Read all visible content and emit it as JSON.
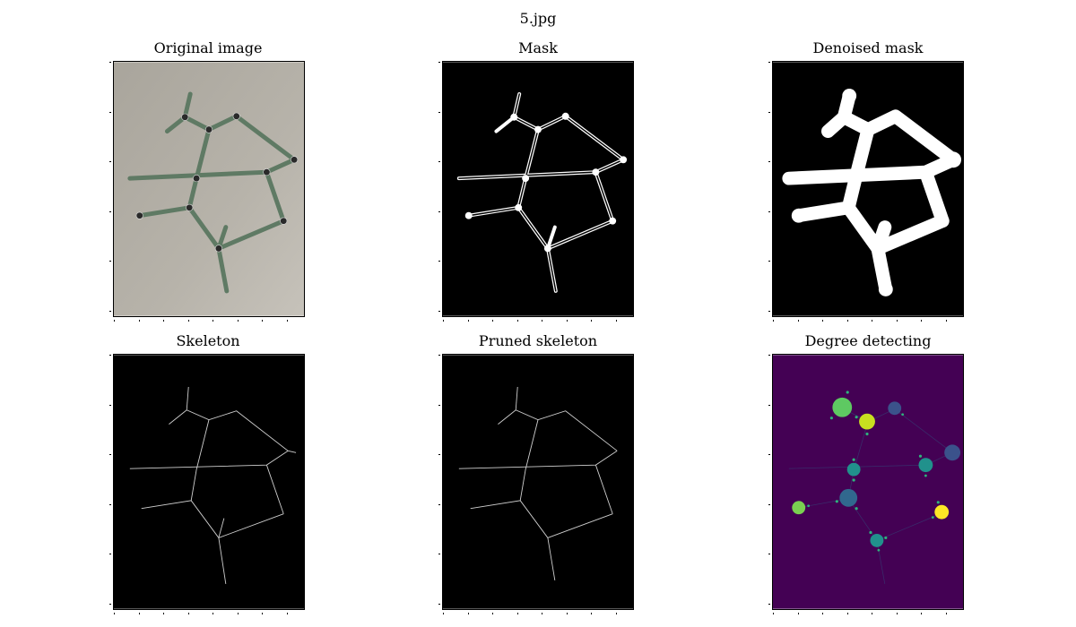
{
  "figure": {
    "title": "5.jpg"
  },
  "panels": [
    {
      "title": "Original image"
    },
    {
      "title": "Mask"
    },
    {
      "title": "Denoised mask"
    },
    {
      "title": "Skeleton"
    },
    {
      "title": "Pruned skeleton"
    },
    {
      "title": "Degree detecting"
    }
  ],
  "colors": {
    "background": "#ffffff",
    "photo_background": "#a8a49b",
    "rod_green": "#5f7a64",
    "mask_black": "#000000",
    "mask_white": "#ffffff",
    "viridis_background": "#440154",
    "viridis_blue": "#3b528b",
    "viridis_teal": "#21918c",
    "viridis_green": "#5ec962",
    "viridis_yellow": "#fde725"
  }
}
